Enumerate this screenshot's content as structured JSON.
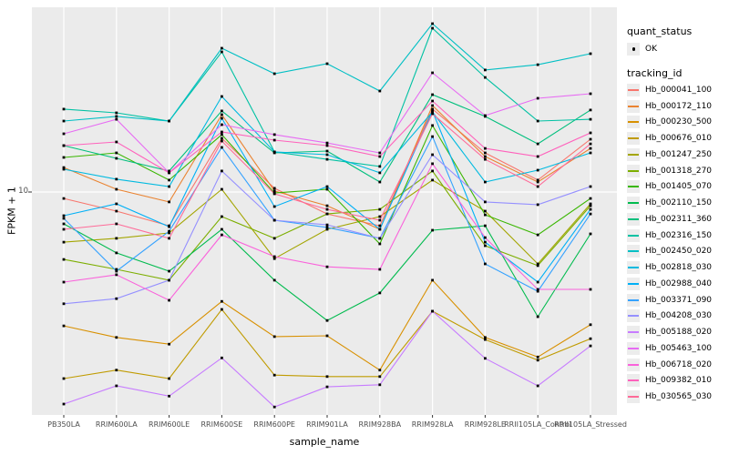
{
  "chart_data": {
    "type": "line",
    "xlabel": "sample_name",
    "ylabel": "FPKM + 1",
    "y_scale": "log10",
    "y_tick_labels": [
      "10"
    ],
    "grid": "white-on-gray",
    "legend_position": "right",
    "legend": {
      "quant_status_title": "quant_status",
      "ok_label": "OK",
      "tracking_id_title": "tracking_id"
    },
    "categories": [
      "PB350LA",
      "RRIM600LA",
      "RRIM600LE",
      "RRIM600SE",
      "RRIM600PE",
      "RRIM901LA",
      "RRIM928BA",
      "RRIM928LA",
      "RRIM928LE",
      "RRII105LA_Control",
      "RRII105LA_Stressed"
    ],
    "series": [
      {
        "name": "Hb_000041_100",
        "color": "#F8766D",
        "quant_status": "OK",
        "values": [
          9.68,
          9.08,
          8.43,
          13.12,
          10.19,
          8.95,
          8.43,
          15.21,
          12.19,
          10.62,
          13.06
        ]
      },
      {
        "name": "Hb_000172_110",
        "color": "#EA8331",
        "quant_status": "OK",
        "values": [
          11.32,
          10.14,
          9.51,
          14.79,
          10.05,
          9.33,
          8.28,
          15.49,
          11.97,
          10.52,
          12.47
        ]
      },
      {
        "name": "Hb_000230_500",
        "color": "#D89000",
        "quant_status": "OK",
        "values": [
          5.08,
          4.79,
          4.63,
          5.75,
          4.81,
          4.83,
          4.06,
          6.4,
          4.79,
          4.34,
          5.11
        ]
      },
      {
        "name": "Hb_000676_010",
        "color": "#C09B00",
        "quant_status": "OK",
        "values": [
          3.89,
          4.06,
          3.89,
          5.52,
          3.96,
          3.93,
          3.93,
          5.47,
          4.74,
          4.27,
          4.76
        ]
      },
      {
        "name": "Hb_001247_250",
        "color": "#A3A500",
        "quant_status": "OK",
        "values": [
          7.76,
          7.91,
          8.13,
          10.14,
          7.14,
          8.28,
          8.83,
          10.62,
          9.08,
          6.95,
          9.42
        ]
      },
      {
        "name": "Hb_001318_270",
        "color": "#7CAE00",
        "quant_status": "OK",
        "values": [
          7.11,
          6.76,
          6.4,
          8.83,
          7.91,
          8.95,
          9.16,
          11.12,
          7.62,
          6.89,
          9.33
        ]
      },
      {
        "name": "Hb_001405_070",
        "color": "#39B600",
        "quant_status": "OK",
        "values": [
          11.91,
          12.19,
          10.62,
          13.37,
          9.95,
          10.14,
          7.69,
          14.0,
          8.91,
          8.05,
          9.68
        ]
      },
      {
        "name": "Hb_002110_150",
        "color": "#00BB4E",
        "quant_status": "OK",
        "values": [
          8.51,
          7.35,
          6.7,
          8.28,
          6.4,
          5.22,
          6.0,
          8.24,
          8.43,
          5.32,
          8.09
        ]
      },
      {
        "name": "Hb_002311_360",
        "color": "#00BF7D",
        "quant_status": "OK",
        "values": [
          12.65,
          11.86,
          11.12,
          15.07,
          12.19,
          12.3,
          10.52,
          16.37,
          14.66,
          12.76,
          15.14
        ]
      },
      {
        "name": "Hb_002316_150",
        "color": "#00C1A3",
        "quant_status": "OK",
        "values": [
          15.21,
          14.93,
          14.32,
          20.32,
          12.25,
          11.8,
          11.38,
          22.91,
          17.86,
          14.32,
          14.45
        ]
      },
      {
        "name": "Hb_002450_020",
        "color": "#00BFC4",
        "quant_status": "OK",
        "values": [
          14.32,
          14.66,
          14.32,
          20.7,
          18.2,
          19.14,
          16.67,
          23.44,
          18.54,
          19.05,
          20.14
        ]
      },
      {
        "name": "Hb_002818_030",
        "color": "#00BAE0",
        "quant_status": "OK",
        "values": [
          11.22,
          10.67,
          10.28,
          16.22,
          12.25,
          12.08,
          11.02,
          15.0,
          10.52,
          11.17,
          12.19
        ]
      },
      {
        "name": "Hb_002988_040",
        "color": "#00B0F6",
        "quant_status": "OK",
        "values": [
          8.87,
          9.42,
          8.39,
          14.52,
          9.29,
          10.28,
          8.28,
          15.07,
          7.76,
          6.34,
          9.16
        ]
      },
      {
        "name": "Hb_003371_090",
        "color": "#35A2FF",
        "quant_status": "OK",
        "values": [
          8.75,
          6.7,
          8.2,
          12.53,
          8.67,
          8.36,
          7.91,
          13.24,
          6.95,
          6.05,
          8.95
        ]
      },
      {
        "name": "Hb_004208_030",
        "color": "#9590FF",
        "quant_status": "OK",
        "values": [
          5.68,
          5.83,
          6.4,
          11.12,
          8.67,
          8.47,
          7.91,
          12.08,
          9.51,
          9.38,
          10.28
        ]
      },
      {
        "name": "Hb_005188_020",
        "color": "#C77CFF",
        "quant_status": "OK",
        "values": [
          3.42,
          3.75,
          3.56,
          4.32,
          3.37,
          3.73,
          3.77,
          5.47,
          4.31,
          3.75,
          4.59
        ]
      },
      {
        "name": "Hb_005463_100",
        "color": "#E76BF3",
        "quant_status": "OK",
        "values": [
          13.43,
          14.45,
          11.02,
          14.06,
          13.37,
          12.82,
          12.19,
          18.28,
          14.72,
          16.07,
          16.44
        ]
      },
      {
        "name": "Hb_006718_020",
        "color": "#FA62DB",
        "quant_status": "OK",
        "values": [
          6.34,
          6.58,
          5.78,
          8.05,
          7.21,
          6.85,
          6.76,
          11.54,
          7.94,
          6.11,
          6.11
        ]
      },
      {
        "name": "Hb_009382_010",
        "color": "#FF62BC",
        "quant_status": "OK",
        "values": [
          12.65,
          12.88,
          11.02,
          13.55,
          13.0,
          12.65,
          11.97,
          15.85,
          12.47,
          11.97,
          13.49
        ]
      },
      {
        "name": "Hb_030565_030",
        "color": "#FF6A98",
        "quant_status": "OK",
        "values": [
          8.28,
          8.51,
          7.91,
          12.94,
          9.91,
          9.16,
          8.67,
          14.86,
          11.8,
          10.28,
          12.76
        ]
      }
    ]
  },
  "theme_colors": {
    "panel_background": "#EBEBEB",
    "grid_line": "#FFFFFF",
    "tick_text": "#4D4D4D",
    "axis_title": "#000000",
    "point": "#000000",
    "legend_key_background": "#ECECEC"
  }
}
